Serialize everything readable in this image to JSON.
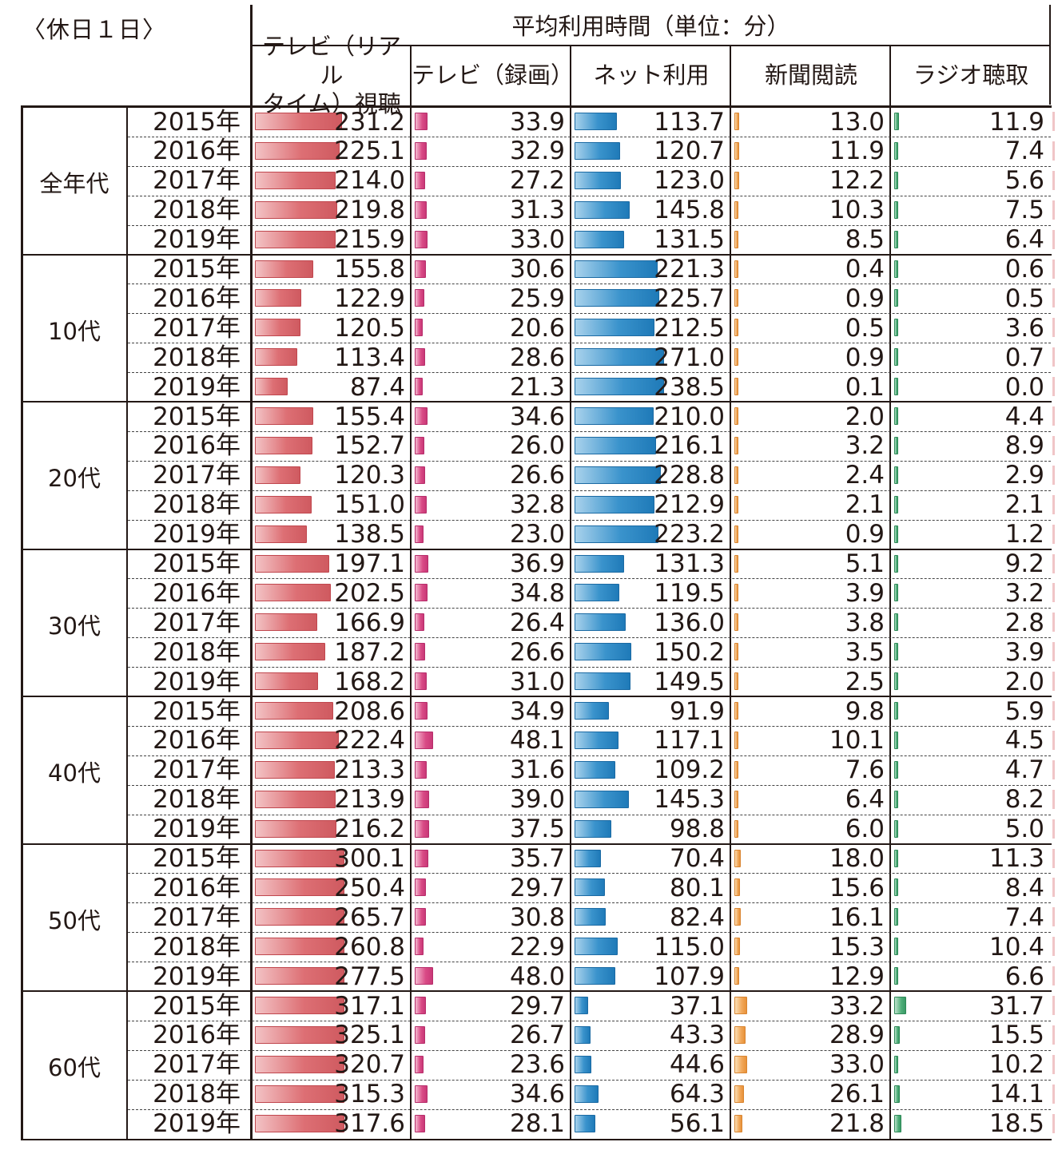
{
  "header": {
    "corner_label": "〈休日１日〉",
    "title": "平均利用時間（単位：分）",
    "columns": [
      {
        "key": "tv_realtime",
        "label_line1": "テレビ（リアル",
        "label_line2": "タイム）視聴",
        "color": "#dd6f74"
      },
      {
        "key": "tv_recorded",
        "label_line1": "テレビ（録画）",
        "label_line2": "",
        "color": "#d94b86"
      },
      {
        "key": "net",
        "label_line1": "ネット利用",
        "label_line2": "",
        "color": "#3a93cc"
      },
      {
        "key": "newspaper",
        "label_line1": "新聞閲読",
        "label_line2": "",
        "color": "#f1a85a"
      },
      {
        "key": "radio",
        "label_line1": "ラジオ聴取",
        "label_line2": "",
        "color": "#4fae79"
      }
    ]
  },
  "groups": [
    {
      "label": "全年代",
      "rows": [
        {
          "year": "2015年",
          "values": [
            "231.2",
            "33.9",
            "113.7",
            "13.0",
            "11.9"
          ]
        },
        {
          "year": "2016年",
          "values": [
            "225.1",
            "32.9",
            "120.7",
            "11.9",
            "7.4"
          ]
        },
        {
          "year": "2017年",
          "values": [
            "214.0",
            "27.2",
            "123.0",
            "12.2",
            "5.6"
          ]
        },
        {
          "year": "2018年",
          "values": [
            "219.8",
            "31.3",
            "145.8",
            "10.3",
            "7.5"
          ]
        },
        {
          "year": "2019年",
          "values": [
            "215.9",
            "33.0",
            "131.5",
            "8.5",
            "6.4"
          ]
        }
      ]
    },
    {
      "label": "10代",
      "rows": [
        {
          "year": "2015年",
          "values": [
            "155.8",
            "30.6",
            "221.3",
            "0.4",
            "0.6"
          ]
        },
        {
          "year": "2016年",
          "values": [
            "122.9",
            "25.9",
            "225.7",
            "0.9",
            "0.5"
          ]
        },
        {
          "year": "2017年",
          "values": [
            "120.5",
            "20.6",
            "212.5",
            "0.5",
            "3.6"
          ]
        },
        {
          "year": "2018年",
          "values": [
            "113.4",
            "28.6",
            "271.0",
            "0.9",
            "0.7"
          ]
        },
        {
          "year": "2019年",
          "values": [
            "87.4",
            "21.3",
            "238.5",
            "0.1",
            "0.0"
          ]
        }
      ]
    },
    {
      "label": "20代",
      "rows": [
        {
          "year": "2015年",
          "values": [
            "155.4",
            "34.6",
            "210.0",
            "2.0",
            "4.4"
          ]
        },
        {
          "year": "2016年",
          "values": [
            "152.7",
            "26.0",
            "216.1",
            "3.2",
            "8.9"
          ]
        },
        {
          "year": "2017年",
          "values": [
            "120.3",
            "26.6",
            "228.8",
            "2.4",
            "2.9"
          ]
        },
        {
          "year": "2018年",
          "values": [
            "151.0",
            "32.8",
            "212.9",
            "2.1",
            "2.1"
          ]
        },
        {
          "year": "2019年",
          "values": [
            "138.5",
            "23.0",
            "223.2",
            "0.9",
            "1.2"
          ]
        }
      ]
    },
    {
      "label": "30代",
      "rows": [
        {
          "year": "2015年",
          "values": [
            "197.1",
            "36.9",
            "131.3",
            "5.1",
            "9.2"
          ]
        },
        {
          "year": "2016年",
          "values": [
            "202.5",
            "34.8",
            "119.5",
            "3.9",
            "3.2"
          ]
        },
        {
          "year": "2017年",
          "values": [
            "166.9",
            "26.4",
            "136.0",
            "3.8",
            "2.8"
          ]
        },
        {
          "year": "2018年",
          "values": [
            "187.2",
            "26.6",
            "150.2",
            "3.5",
            "3.9"
          ]
        },
        {
          "year": "2019年",
          "values": [
            "168.2",
            "31.0",
            "149.5",
            "2.5",
            "2.0"
          ]
        }
      ]
    },
    {
      "label": "40代",
      "rows": [
        {
          "year": "2015年",
          "values": [
            "208.6",
            "34.9",
            "91.9",
            "9.8",
            "5.9"
          ]
        },
        {
          "year": "2016年",
          "values": [
            "222.4",
            "48.1",
            "117.1",
            "10.1",
            "4.5"
          ]
        },
        {
          "year": "2017年",
          "values": [
            "213.3",
            "31.6",
            "109.2",
            "7.6",
            "4.7"
          ]
        },
        {
          "year": "2018年",
          "values": [
            "213.9",
            "39.0",
            "145.3",
            "6.4",
            "8.2"
          ]
        },
        {
          "year": "2019年",
          "values": [
            "216.2",
            "37.5",
            "98.8",
            "6.0",
            "5.0"
          ]
        }
      ]
    },
    {
      "label": "50代",
      "rows": [
        {
          "year": "2015年",
          "values": [
            "300.1",
            "35.7",
            "70.4",
            "18.0",
            "11.3"
          ]
        },
        {
          "year": "2016年",
          "values": [
            "250.4",
            "29.7",
            "80.1",
            "15.6",
            "8.4"
          ]
        },
        {
          "year": "2017年",
          "values": [
            "265.7",
            "30.8",
            "82.4",
            "16.1",
            "7.4"
          ]
        },
        {
          "year": "2018年",
          "values": [
            "260.8",
            "22.9",
            "115.0",
            "15.3",
            "10.4"
          ]
        },
        {
          "year": "2019年",
          "values": [
            "277.5",
            "48.0",
            "107.9",
            "12.9",
            "6.6"
          ]
        }
      ]
    },
    {
      "label": "60代",
      "rows": [
        {
          "year": "2015年",
          "values": [
            "317.1",
            "29.7",
            "37.1",
            "33.2",
            "31.7"
          ]
        },
        {
          "year": "2016年",
          "values": [
            "325.1",
            "26.7",
            "43.3",
            "28.9",
            "15.5"
          ]
        },
        {
          "year": "2017年",
          "values": [
            "320.7",
            "23.6",
            "44.6",
            "33.0",
            "10.2"
          ]
        },
        {
          "year": "2018年",
          "values": [
            "315.3",
            "34.6",
            "64.3",
            "26.1",
            "14.1"
          ]
        },
        {
          "year": "2019年",
          "values": [
            "317.6",
            "28.1",
            "56.1",
            "21.8",
            "18.5"
          ]
        }
      ]
    }
  ]
}
